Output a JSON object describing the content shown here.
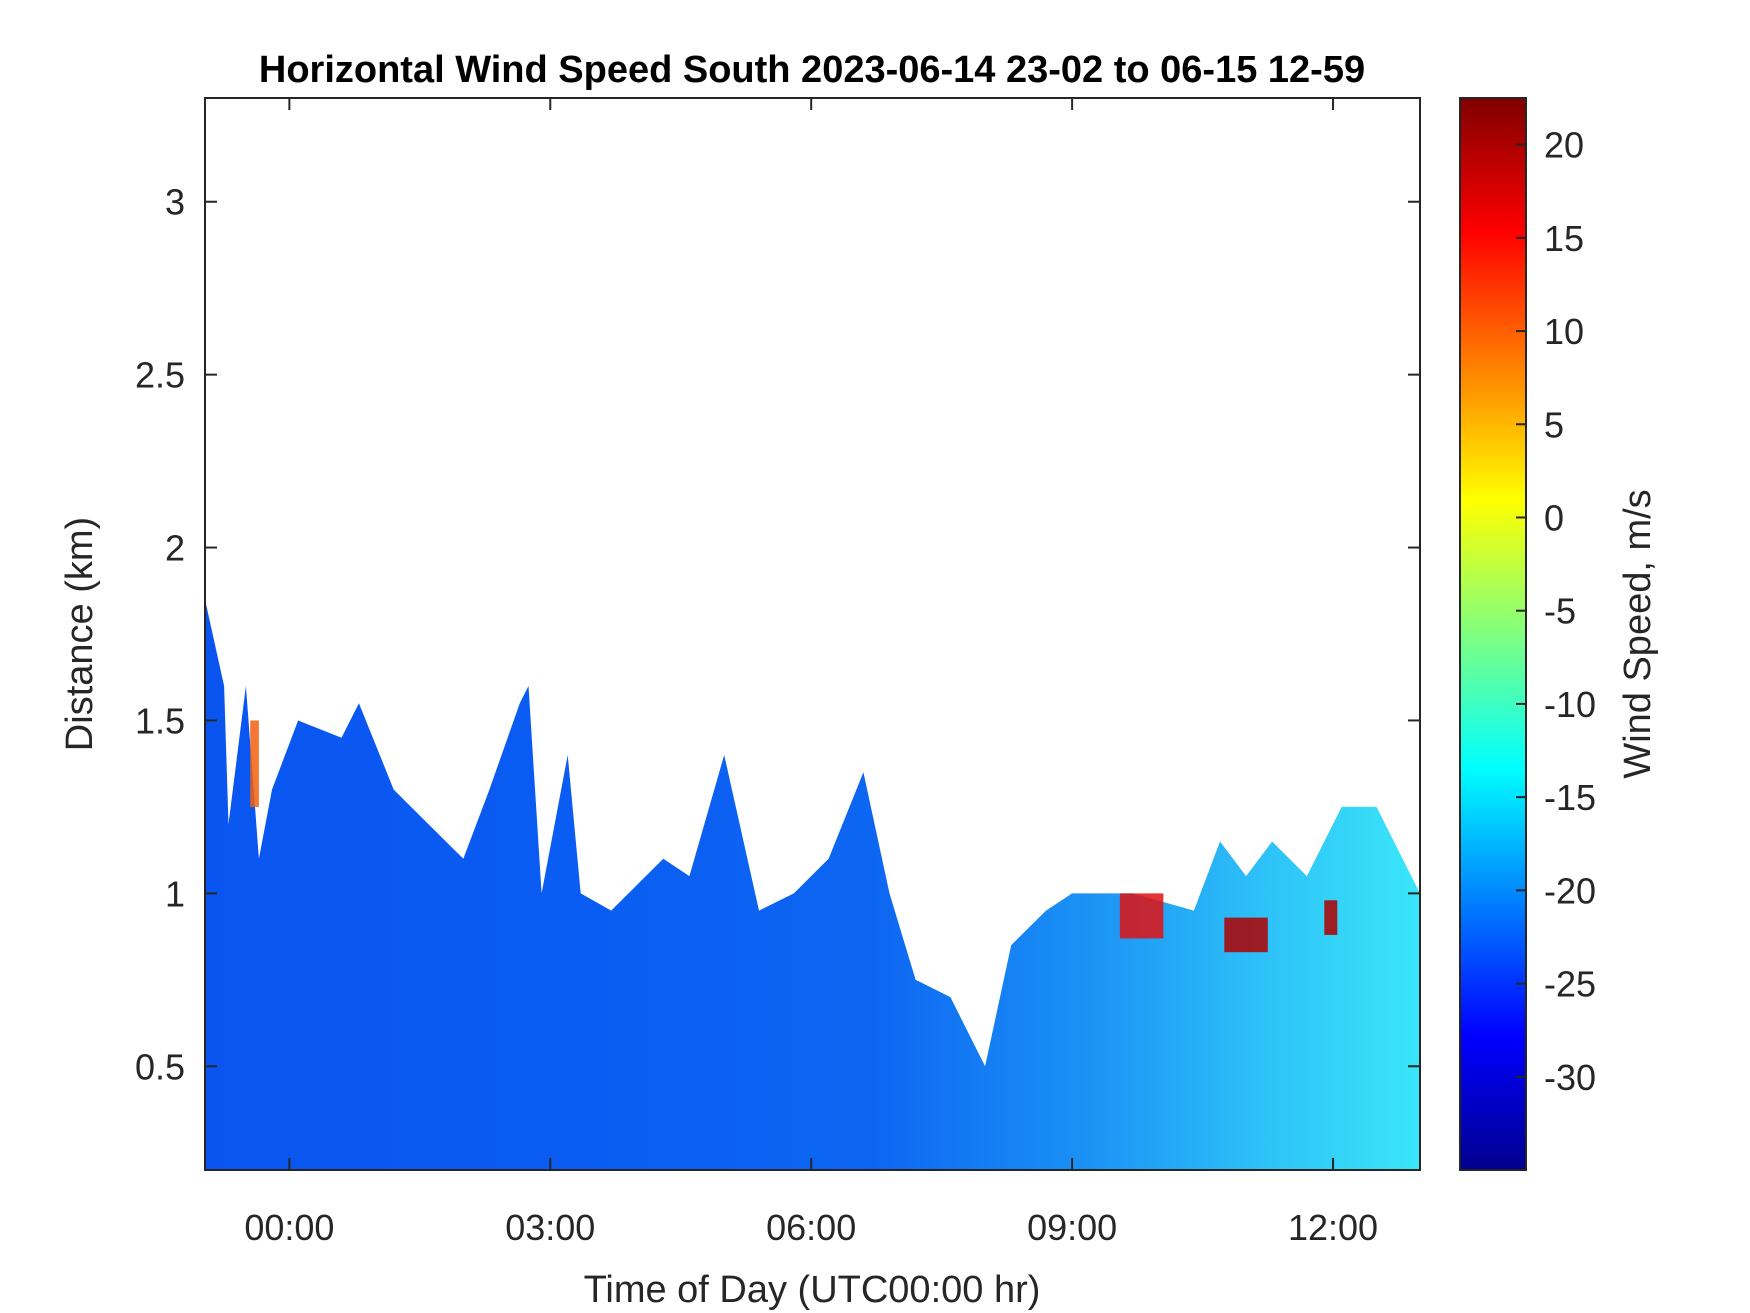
{
  "chart_data": {
    "type": "heatmap",
    "title": "Horizontal Wind Speed South 2023-06-14 23-02 to 06-15 12-59",
    "xlabel": "Time of Day (UTC00:00 hr)",
    "ylabel": "Distance (km)",
    "colorbar_label": "Wind Speed, m/s",
    "x_ticks": [
      "00:00",
      "03:00",
      "06:00",
      "09:00",
      "12:00"
    ],
    "x_tick_hours": [
      0,
      3,
      6,
      9,
      12
    ],
    "xlim_hours": [
      -0.97,
      13.0
    ],
    "y_ticks": [
      "0.5",
      "1",
      "1.5",
      "2",
      "2.5",
      "3"
    ],
    "y_tick_values": [
      0.5,
      1,
      1.5,
      2,
      2.5,
      3
    ],
    "ylim": [
      0.2,
      3.3
    ],
    "colorbar_ticks": [
      "20",
      "15",
      "10",
      "5",
      "0",
      "-5",
      "-10",
      "-15",
      "-20",
      "-25",
      "-30"
    ],
    "colorbar_tick_values": [
      20,
      15,
      10,
      5,
      0,
      -5,
      -10,
      -15,
      -20,
      -25,
      -30
    ],
    "clim": [
      -35,
      22.5
    ],
    "colormap": "jet",
    "data_top_km": [
      [
        -0.97,
        1.85
      ],
      [
        -0.75,
        1.6
      ],
      [
        -0.7,
        1.2
      ],
      [
        -0.5,
        1.6
      ],
      [
        -0.35,
        1.1
      ],
      [
        -0.2,
        1.3
      ],
      [
        0.1,
        1.5
      ],
      [
        0.6,
        1.45
      ],
      [
        0.8,
        1.55
      ],
      [
        1.2,
        1.3
      ],
      [
        1.6,
        1.2
      ],
      [
        2.0,
        1.1
      ],
      [
        2.3,
        1.3
      ],
      [
        2.65,
        1.55
      ],
      [
        2.75,
        1.6
      ],
      [
        2.9,
        1.0
      ],
      [
        3.2,
        1.4
      ],
      [
        3.35,
        1.0
      ],
      [
        3.7,
        0.95
      ],
      [
        4.3,
        1.1
      ],
      [
        4.6,
        1.05
      ],
      [
        5.0,
        1.4
      ],
      [
        5.4,
        0.95
      ],
      [
        5.8,
        1.0
      ],
      [
        6.2,
        1.1
      ],
      [
        6.6,
        1.35
      ],
      [
        6.9,
        1.0
      ],
      [
        7.2,
        0.75
      ],
      [
        7.6,
        0.7
      ],
      [
        7.9,
        0.55
      ],
      [
        8.0,
        0.5
      ],
      [
        8.3,
        0.85
      ],
      [
        8.7,
        0.95
      ],
      [
        9.0,
        1.0
      ],
      [
        9.7,
        1.0
      ],
      [
        10.4,
        0.95
      ],
      [
        10.7,
        1.15
      ],
      [
        11.0,
        1.05
      ],
      [
        11.3,
        1.15
      ],
      [
        11.7,
        1.05
      ],
      [
        12.1,
        1.25
      ],
      [
        12.5,
        1.25
      ],
      [
        12.8,
        1.1
      ],
      [
        13.0,
        1.0
      ]
    ],
    "strong_positive_patches": [
      {
        "x": [
          9.55,
          10.05
        ],
        "y": [
          0.87,
          1.0
        ],
        "speed_ms": 18
      },
      {
        "x": [
          10.75,
          11.25
        ],
        "y": [
          0.83,
          0.93
        ],
        "speed_ms": 20
      },
      {
        "x": [
          11.9,
          12.05
        ],
        "y": [
          0.88,
          0.98
        ],
        "speed_ms": 21
      },
      {
        "x": [
          -0.45,
          -0.35
        ],
        "y": [
          1.25,
          1.5
        ],
        "speed_ms": 12
      }
    ],
    "colors": {
      "background": "#ffffff",
      "axes_color": "#262626"
    }
  }
}
